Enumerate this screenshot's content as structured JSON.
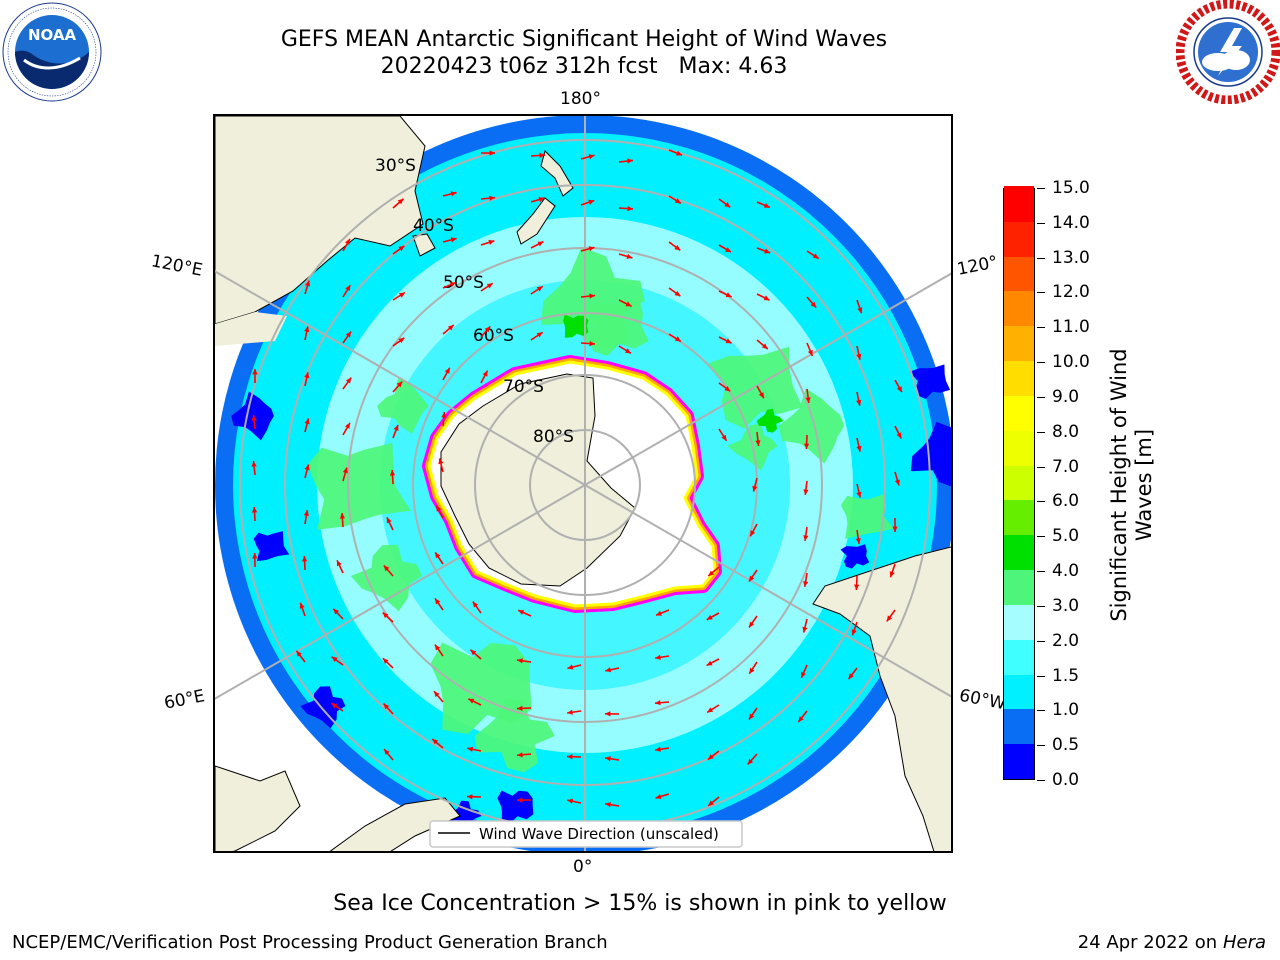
{
  "title": {
    "line1": "GEFS MEAN Antarctic Significant Height of Wind Waves",
    "line2": "20220423 t06z 312h fcst   Max: 4.63"
  },
  "logos": {
    "left": {
      "name": "noaa-logo",
      "text": "NOAA",
      "ring_text": "NATIONAL OCEANIC AND ATMOSPHERIC ADMINISTRATION · U.S. DEPARTMENT OF COMMERCE"
    },
    "right": {
      "name": "nws-logo",
      "ring_text": "NATIONAL WEATHER SERVICE"
    }
  },
  "map": {
    "projection": "south-polar-stereographic",
    "lon_labels": {
      "top": "180°",
      "bottom": "0°",
      "upper_left": "120°E",
      "upper_right": "120°",
      "lower_left": "60°E",
      "lower_right": "60°W"
    },
    "lat_labels": [
      "30°S",
      "40°S",
      "50°S",
      "60°S",
      "70°S",
      "80°S"
    ],
    "legend_label": "Wind Wave Direction (unscaled)",
    "colors": {
      "land": "#efefdb",
      "ocean_zones": [
        "#0000ff",
        "#0a6ef5",
        "#00f0ff",
        "#a5fdff",
        "#4df67a",
        "#00e000"
      ],
      "sea_ice": [
        "#ff00ff",
        "#ffa500",
        "#ffff00"
      ],
      "arrow": "#ff0000",
      "grid": "#b0b0b0"
    }
  },
  "colorbar": {
    "label": "Significant Height of Wind Waves [m]",
    "ticks": [
      "0.0",
      "0.5",
      "1.0",
      "1.5",
      "2.0",
      "3.0",
      "4.0",
      "5.0",
      "6.0",
      "7.0",
      "8.0",
      "9.0",
      "10.0",
      "11.0",
      "12.0",
      "13.0",
      "14.0",
      "15.0"
    ],
    "colors": [
      "#0000ff",
      "#0a6ef5",
      "#00f0ff",
      "#40ffff",
      "#a5fdff",
      "#4df67a",
      "#00e000",
      "#66ee00",
      "#ccff00",
      "#eeff00",
      "#ffff00",
      "#ffdd00",
      "#ffb000",
      "#ff8800",
      "#ff5500",
      "#ff2200",
      "#ff0000"
    ]
  },
  "notes": {
    "ice": "Sea Ice Concentration > 15% is shown in pink to yellow",
    "footer_left": "NCEP/EMC/Verification Post Processing Product Generation Branch",
    "footer_date": "24 Apr 2022 on ",
    "footer_host": "Hera"
  }
}
